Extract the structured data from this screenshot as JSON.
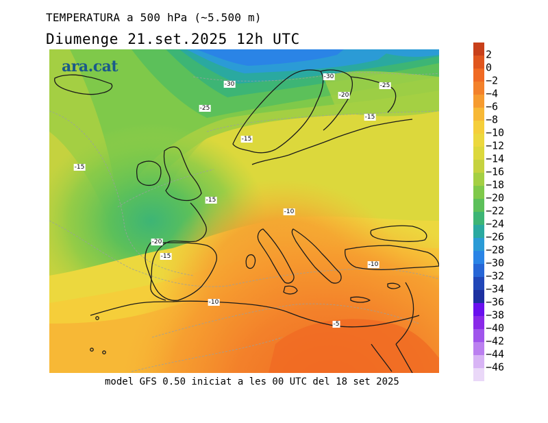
{
  "header": {
    "title": "TEMPERATURA a 500 hPa (~5.500 m)",
    "date": "Diumenge  21.set.2025 12h UTC"
  },
  "footer": {
    "text": "model GFS 0.50 iniciat a les 00 UTC del 18 set 2025"
  },
  "map": {
    "brand": "ara.cat",
    "contour_labels": [
      {
        "text": "-30"
      },
      {
        "text": "-30"
      },
      {
        "text": "-25"
      },
      {
        "text": "-20"
      },
      {
        "text": "-25"
      },
      {
        "text": "-15"
      },
      {
        "text": "-15"
      },
      {
        "text": "-15"
      },
      {
        "text": "-15"
      },
      {
        "text": "-10"
      },
      {
        "text": "-20"
      },
      {
        "text": "-15"
      },
      {
        "text": "-10"
      },
      {
        "text": "-10"
      },
      {
        "text": "-5"
      }
    ]
  },
  "legend": {
    "entries": [
      {
        "label": "2",
        "color": "#c8401a"
      },
      {
        "label": "0",
        "color": "#e0561e"
      },
      {
        "label": "-2",
        "color": "#f06a23"
      },
      {
        "label": "-4",
        "color": "#f3812a"
      },
      {
        "label": "-6",
        "color": "#f69b2f"
      },
      {
        "label": "-8",
        "color": "#f7b836"
      },
      {
        "label": "-10",
        "color": "#f5ce3a"
      },
      {
        "label": "-12",
        "color": "#ecd83e"
      },
      {
        "label": "-14",
        "color": "#dcd83c"
      },
      {
        "label": "-16",
        "color": "#c5d23f"
      },
      {
        "label": "-18",
        "color": "#a4cf43"
      },
      {
        "label": "-20",
        "color": "#7fc94a"
      },
      {
        "label": "-22",
        "color": "#5cc05a"
      },
      {
        "label": "-24",
        "color": "#3db575"
      },
      {
        "label": "-26",
        "color": "#2aa9a0"
      },
      {
        "label": "-28",
        "color": "#2b9bd6"
      },
      {
        "label": "-30",
        "color": "#2a84e6"
      },
      {
        "label": "-32",
        "color": "#2766d6"
      },
      {
        "label": "-34",
        "color": "#2147b8"
      },
      {
        "label": "-36",
        "color": "#1d30a0"
      },
      {
        "label": "-38",
        "color": "#6a10ee"
      },
      {
        "label": "-40",
        "color": "#8a2ae8"
      },
      {
        "label": "-42",
        "color": "#a055ec"
      },
      {
        "label": "-44",
        "color": "#bb80f0"
      },
      {
        "label": "-46",
        "color": "#d8b4f5"
      },
      {
        "label": "",
        "color": "#ead8f8"
      }
    ]
  }
}
